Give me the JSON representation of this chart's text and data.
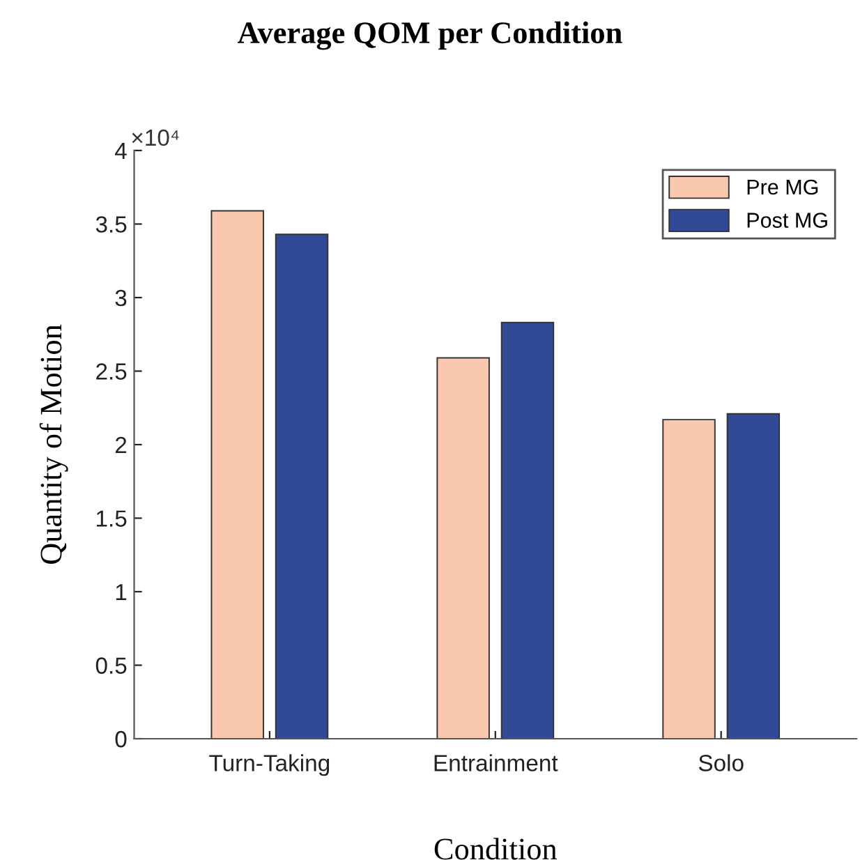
{
  "chart_data": {
    "type": "bar",
    "title": "Average QOM per Condition",
    "xlabel": "Condition",
    "ylabel": "Quantity of Motion",
    "categories": [
      "Turn-Taking",
      "Entrainment",
      "Solo"
    ],
    "series": [
      {
        "name": "Pre MG",
        "color": "#f9c8ae",
        "values": [
          3.59,
          2.59,
          2.17
        ]
      },
      {
        "name": "Post MG",
        "color": "#324a96",
        "values": [
          3.43,
          2.83,
          2.21
        ]
      }
    ],
    "ylim": [
      0,
      4
    ],
    "yticks": [
      0,
      0.5,
      1,
      1.5,
      2,
      2.5,
      3,
      3.5,
      4
    ],
    "annotations": [
      "×10⁴"
    ],
    "legend": "top right",
    "grid": false
  }
}
